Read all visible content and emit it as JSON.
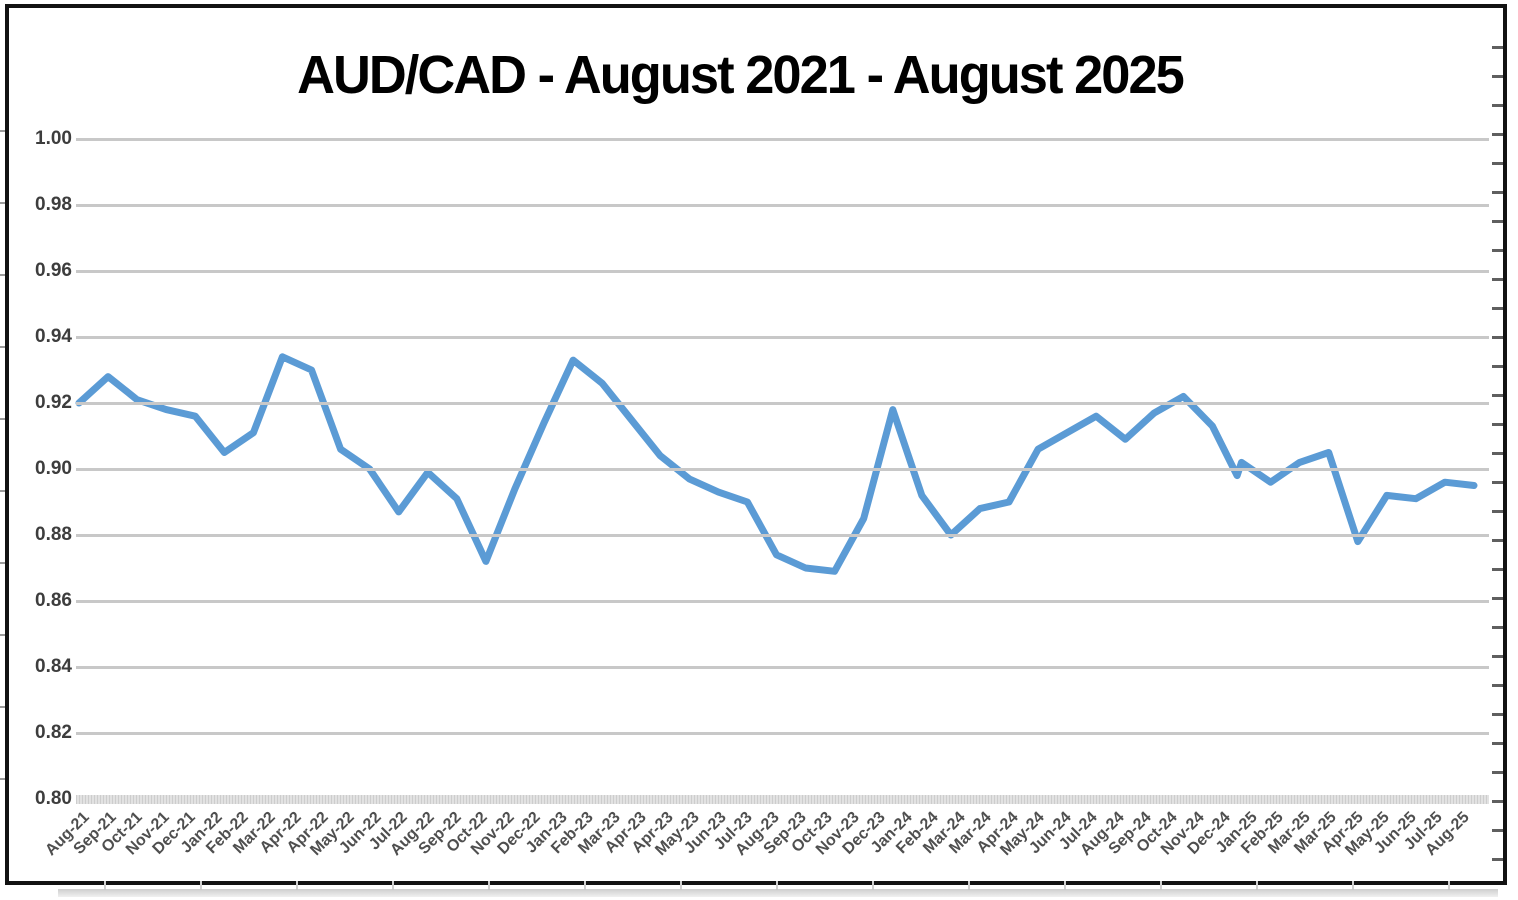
{
  "title": "AUD/CAD - August 2021 - August 2025",
  "chart_data": {
    "type": "line",
    "title": "AUD/CAD - August 2021 - August 2025",
    "xlabel": "",
    "ylabel": "",
    "ylim": [
      0.8,
      1.0
    ],
    "y_tick_step": 0.02,
    "y_ticks": [
      "1.00",
      "0.98",
      "0.96",
      "0.94",
      "0.92",
      "0.90",
      "0.88",
      "0.86",
      "0.84",
      "0.82",
      "0.80"
    ],
    "grid": "horizontal",
    "legend": "none",
    "line_color": "#5B9BD5",
    "gridline_color": "#C8C8C8",
    "x_labels": [
      "Aug-21",
      "Sep-21",
      "Oct-21",
      "Nov-21",
      "Dec-21",
      "Jan-22",
      "Feb-22",
      "Mar-22",
      "Apr-22",
      "Apr-22",
      "May-22",
      "Jun-22",
      "Jul-22",
      "Aug-22",
      "Sep-22",
      "Oct-22",
      "Nov-22",
      "Dec-22",
      "Jan-23",
      "Feb-23",
      "Mar-23",
      "Apr-23",
      "Apr-23",
      "May-23",
      "Jun-23",
      "Jul-23",
      "Aug-23",
      "Sep-23",
      "Oct-23",
      "Nov-23",
      "Dec-23",
      "Jan-24",
      "Feb-24",
      "Mar-24",
      "Mar-24",
      "Apr-24",
      "May-24",
      "Jun-24",
      "Jul-24",
      "Aug-24",
      "Sep-24",
      "Oct-24",
      "Nov-24",
      "Dec-24",
      "Jan-25",
      "Feb-25",
      "Mar-25",
      "Mar-25",
      "Apr-25",
      "May-25",
      "Jun-25",
      "Jul-25",
      "Aug-25"
    ],
    "x_label_note": "labels as printed contain duplicated months: Apr-22, Apr-23, Mar-24, Mar-25",
    "series": [
      {
        "name": "AUD/CAD",
        "points": [
          [
            0,
            0.92,
            "Aug-21"
          ],
          [
            1,
            0.928,
            "Sep-21"
          ],
          [
            2,
            0.921,
            "Oct-21"
          ],
          [
            3,
            0.918,
            "Nov-21"
          ],
          [
            4,
            0.916,
            "Dec-21"
          ],
          [
            5,
            0.905,
            "Jan-22"
          ],
          [
            6,
            0.911,
            "Feb-22"
          ],
          [
            7,
            0.934,
            "Mar-22"
          ],
          [
            8,
            0.93,
            "Apr-22"
          ],
          [
            9,
            0.906,
            "May-22"
          ],
          [
            10,
            0.9,
            "Jun-22"
          ],
          [
            11,
            0.887,
            "Jul-22"
          ],
          [
            12,
            0.899,
            "Aug-22"
          ],
          [
            13,
            0.891,
            "Sep-22"
          ],
          [
            14,
            0.872,
            "Oct-22"
          ],
          [
            15,
            0.894,
            "Nov-22"
          ],
          [
            16,
            0.914,
            "Dec-22"
          ],
          [
            17,
            0.933,
            "Jan-23"
          ],
          [
            18,
            0.926,
            "Feb-23"
          ],
          [
            19,
            0.915,
            "Mar-23"
          ],
          [
            20,
            0.904,
            "Apr-23"
          ],
          [
            21,
            0.897,
            "May-23"
          ],
          [
            22,
            0.893,
            "Jun-23"
          ],
          [
            23,
            0.89,
            "Jul-23"
          ],
          [
            24,
            0.874,
            "Aug-23"
          ],
          [
            25,
            0.87,
            "Sep-23"
          ],
          [
            26,
            0.869,
            "Oct-23"
          ],
          [
            27,
            0.885,
            "Nov-23"
          ],
          [
            28,
            0.918,
            "Dec-23"
          ],
          [
            29,
            0.892,
            "Jan-24"
          ],
          [
            30,
            0.88,
            "Feb-24"
          ],
          [
            31,
            0.888,
            "Mar-24"
          ],
          [
            32,
            0.89,
            "Apr-24"
          ],
          [
            33,
            0.906,
            "May-24"
          ],
          [
            34,
            0.911,
            "Jun-24"
          ],
          [
            35,
            0.916,
            "Jul-24"
          ],
          [
            36,
            0.909,
            "Aug-24"
          ],
          [
            37,
            0.917,
            "Sep-24"
          ],
          [
            38,
            0.922,
            "Oct-24"
          ],
          [
            39,
            0.913,
            "Nov-24"
          ],
          [
            39.85,
            0.898,
            "extra-vertex-before-Dec-24"
          ],
          [
            40,
            0.902,
            "Dec-24"
          ],
          [
            41,
            0.896,
            "Jan-25"
          ],
          [
            42,
            0.902,
            "Feb-25"
          ],
          [
            43,
            0.905,
            "Mar-25"
          ],
          [
            44,
            0.878,
            "Apr-25"
          ],
          [
            45,
            0.892,
            "May-25"
          ],
          [
            46,
            0.891,
            "Jun-25"
          ],
          [
            47,
            0.896,
            "Jul-25"
          ],
          [
            48,
            0.895,
            "Aug-25"
          ]
        ]
      }
    ]
  }
}
